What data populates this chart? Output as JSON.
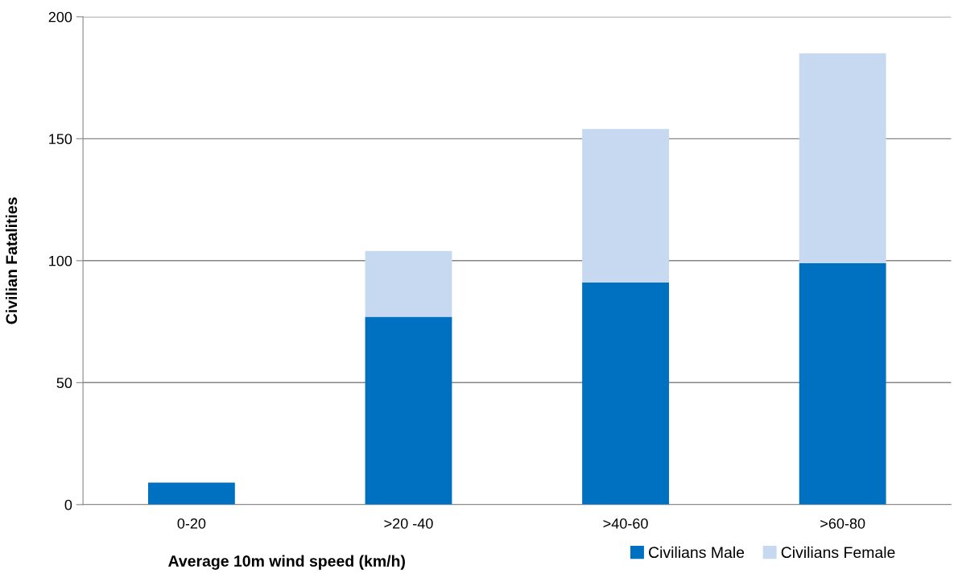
{
  "chart_data": {
    "type": "bar",
    "stacked": true,
    "xlabel": "Average 10m wind speed (km/h)",
    "ylabel": "Civilian Fatalities",
    "categories": [
      "0-20",
      ">20 -40",
      ">40-60",
      ">60-80"
    ],
    "series": [
      {
        "name": "Civilians Male",
        "color": "#0070c0",
        "values": [
          9,
          77,
          91,
          99
        ]
      },
      {
        "name": "Civilians Female",
        "color": "#c6d9f1",
        "values": [
          0,
          27,
          63,
          86
        ]
      }
    ],
    "ylim": [
      0,
      200
    ],
    "yticks": [
      0,
      50,
      100,
      150,
      200
    ],
    "grid": "y",
    "legend": "bottom"
  }
}
